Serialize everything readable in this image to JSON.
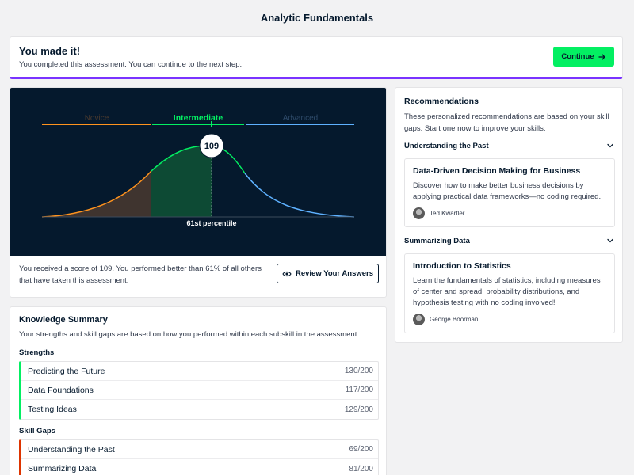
{
  "page": {
    "title": "Analytic Fundamentals"
  },
  "banner": {
    "title": "You made it!",
    "subtitle": "You completed this assessment. You can continue to the next step.",
    "continue_label": "Continue",
    "accent": "#03ef62"
  },
  "score": {
    "value": "109",
    "percentile_label": "61st percentile",
    "levels": [
      "Novice",
      "Intermediate",
      "Advanced"
    ],
    "active_level": "Intermediate",
    "level_colors": [
      "#ff931e",
      "#03ef62",
      "#5eb1ff"
    ],
    "summary": "You received a score of 109. You performed better than 61% of all others that have taken this assessment.",
    "review_label": "Review Your Answers"
  },
  "knowledge": {
    "title": "Knowledge Summary",
    "description": "Your strengths and skill gaps are based on how you performed within each subskill in the assessment.",
    "strengths_label": "Strengths",
    "strengths": [
      {
        "name": "Predicting the Future",
        "score": "130/200"
      },
      {
        "name": "Data Foundations",
        "score": "117/200"
      },
      {
        "name": "Testing Ideas",
        "score": "129/200"
      }
    ],
    "gaps_label": "Skill Gaps",
    "gaps": [
      {
        "name": "Understanding the Past",
        "score": "69/200"
      },
      {
        "name": "Summarizing Data",
        "score": "81/200"
      }
    ]
  },
  "recommendations": {
    "title": "Recommendations",
    "description": "These personalized recommendations are based on your skill gaps. Start one now to improve your skills.",
    "sections": [
      {
        "label": "Understanding the Past",
        "course": {
          "title": "Data-Driven Decision Making for Business",
          "description": "Discover how to make better business decisions by applying practical data frameworks—no coding required.",
          "author": "Ted Kwartler"
        }
      },
      {
        "label": "Summarizing Data",
        "course": {
          "title": "Introduction to Statistics",
          "description": "Learn the fundamentals of statistics, including measures of center and spread, probability distributions, and hypothesis testing with no coding involved!",
          "author": "George Boorman"
        }
      }
    ]
  }
}
